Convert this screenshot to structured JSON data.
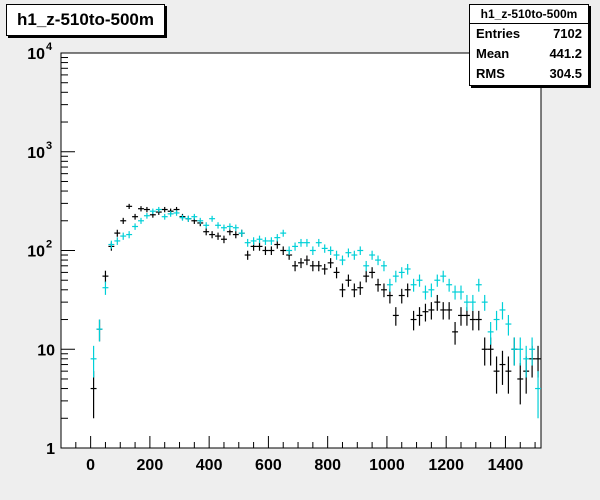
{
  "title": "h1_z-510to-500m",
  "stats": {
    "title": "h1_z-510to-500m",
    "rows": [
      {
        "label": "Entries",
        "value": "7102"
      },
      {
        "label": "Mean",
        "value": "441.2"
      },
      {
        "label": "RMS",
        "value": "304.5"
      }
    ]
  },
  "chart_data": {
    "type": "scatter",
    "title": "h1_z-510to-500m",
    "xlabel": "",
    "ylabel": "",
    "xlim": [
      -100,
      1520
    ],
    "ylim": [
      1,
      10000
    ],
    "yscale": "log",
    "x_ticks": [
      "0",
      "200",
      "400",
      "600",
      "800",
      "1000",
      "1200",
      "1400"
    ],
    "y_ticks": [
      {
        "value": 1,
        "base": "1",
        "exp": ""
      },
      {
        "value": 10,
        "base": "10",
        "exp": ""
      },
      {
        "value": 100,
        "base": "10",
        "exp": "2"
      },
      {
        "value": 1000,
        "base": "10",
        "exp": "3"
      },
      {
        "value": 10000,
        "base": "10",
        "exp": "4"
      }
    ],
    "bin_width": 20,
    "series": [
      {
        "color": "#000000",
        "x": [
          10,
          30,
          50,
          70,
          90,
          110,
          130,
          150,
          170,
          190,
          210,
          230,
          250,
          270,
          290,
          310,
          330,
          350,
          370,
          390,
          410,
          430,
          450,
          470,
          490,
          510,
          530,
          550,
          570,
          590,
          610,
          630,
          650,
          670,
          690,
          710,
          730,
          750,
          770,
          790,
          810,
          830,
          850,
          870,
          890,
          910,
          930,
          950,
          970,
          990,
          1010,
          1030,
          1050,
          1070,
          1090,
          1110,
          1130,
          1150,
          1170,
          1190,
          1210,
          1230,
          1250,
          1270,
          1290,
          1310,
          1330,
          1350,
          1370,
          1390,
          1410,
          1430,
          1450,
          1470,
          1490,
          1510
        ],
        "y": [
          4,
          16,
          55,
          110,
          150,
          200,
          280,
          220,
          265,
          260,
          230,
          245,
          260,
          250,
          260,
          220,
          210,
          200,
          190,
          155,
          145,
          140,
          130,
          155,
          145,
          150,
          90,
          110,
          110,
          100,
          100,
          115,
          100,
          90,
          70,
          75,
          80,
          70,
          70,
          65,
          75,
          60,
          40,
          50,
          40,
          42,
          55,
          60,
          45,
          40,
          35,
          22,
          35,
          40,
          20,
          22,
          24,
          25,
          30,
          25,
          25,
          15,
          22,
          22,
          20,
          20,
          10,
          10,
          6,
          7,
          6,
          10,
          5,
          6,
          8,
          8
        ]
      },
      {
        "color": "#00d0d8",
        "x": [
          10,
          30,
          50,
          70,
          90,
          110,
          130,
          150,
          170,
          190,
          210,
          230,
          250,
          270,
          290,
          310,
          330,
          350,
          370,
          390,
          410,
          430,
          450,
          470,
          490,
          510,
          530,
          550,
          570,
          590,
          610,
          630,
          650,
          670,
          690,
          710,
          730,
          750,
          770,
          790,
          810,
          830,
          850,
          870,
          890,
          910,
          930,
          950,
          970,
          990,
          1010,
          1030,
          1050,
          1070,
          1090,
          1110,
          1130,
          1150,
          1170,
          1190,
          1210,
          1230,
          1250,
          1270,
          1290,
          1310,
          1330,
          1350,
          1370,
          1390,
          1410,
          1430,
          1450,
          1470,
          1490,
          1510
        ],
        "y": [
          8,
          16,
          42,
          115,
          125,
          140,
          145,
          175,
          200,
          225,
          250,
          260,
          220,
          235,
          240,
          215,
          210,
          220,
          200,
          180,
          210,
          180,
          170,
          175,
          170,
          150,
          120,
          125,
          130,
          125,
          125,
          135,
          150,
          100,
          110,
          120,
          120,
          100,
          120,
          105,
          100,
          90,
          80,
          95,
          90,
          100,
          70,
          90,
          80,
          70,
          45,
          55,
          60,
          65,
          45,
          50,
          38,
          40,
          50,
          55,
          45,
          38,
          38,
          30,
          30,
          45,
          30,
          15,
          20,
          25,
          18,
          10,
          10,
          8,
          10,
          4
        ]
      }
    ]
  }
}
